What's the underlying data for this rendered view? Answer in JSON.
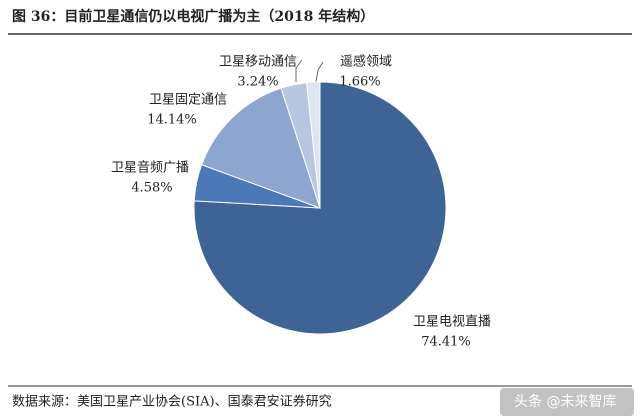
{
  "chart_data": {
    "type": "pie",
    "title": "图 36：目前卫星通信仍以电视广播为主（2018 年结构）",
    "categories": [
      "卫星电视直播",
      "卫星音频广播",
      "卫星固定通信",
      "卫星移动通信",
      "遥感领域"
    ],
    "values": [
      74.41,
      4.58,
      14.14,
      3.24,
      1.66
    ],
    "value_labels": [
      "74.41%",
      "4.58%",
      "14.14%",
      "3.24%",
      "1.66%"
    ],
    "colors": [
      "#3e6496",
      "#4b78b6",
      "#8da6cf",
      "#b8c7e1",
      "#dde5f1"
    ],
    "source": "数据来源：美国卫星产业协会(SIA)、国泰君安证券研究",
    "watermark": "头条 @未来智库"
  }
}
